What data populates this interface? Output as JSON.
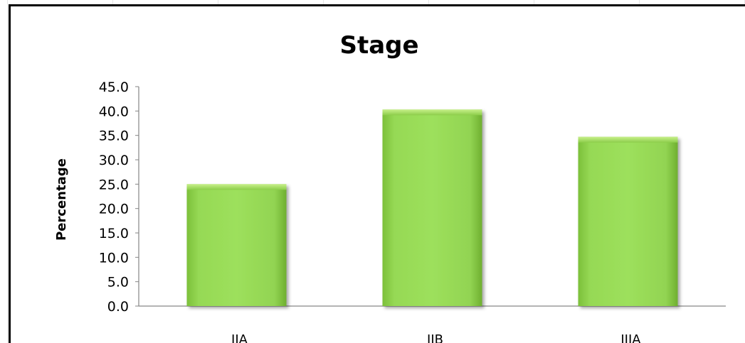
{
  "chart_data": {
    "type": "bar",
    "title": "Stage",
    "xlabel": "",
    "ylabel": "Percentage",
    "categories": [
      "IIA",
      "IIB",
      "IIIA"
    ],
    "values": [
      25.0,
      40.3,
      34.7
    ],
    "ylim": [
      0,
      45
    ],
    "yticks": [
      "0.0",
      "5.0",
      "10.0",
      "15.0",
      "20.0",
      "25.0",
      "30.0",
      "35.0",
      "40.0",
      "45.0"
    ],
    "grid": false,
    "legend": "none",
    "bar_color": "#92d050"
  }
}
